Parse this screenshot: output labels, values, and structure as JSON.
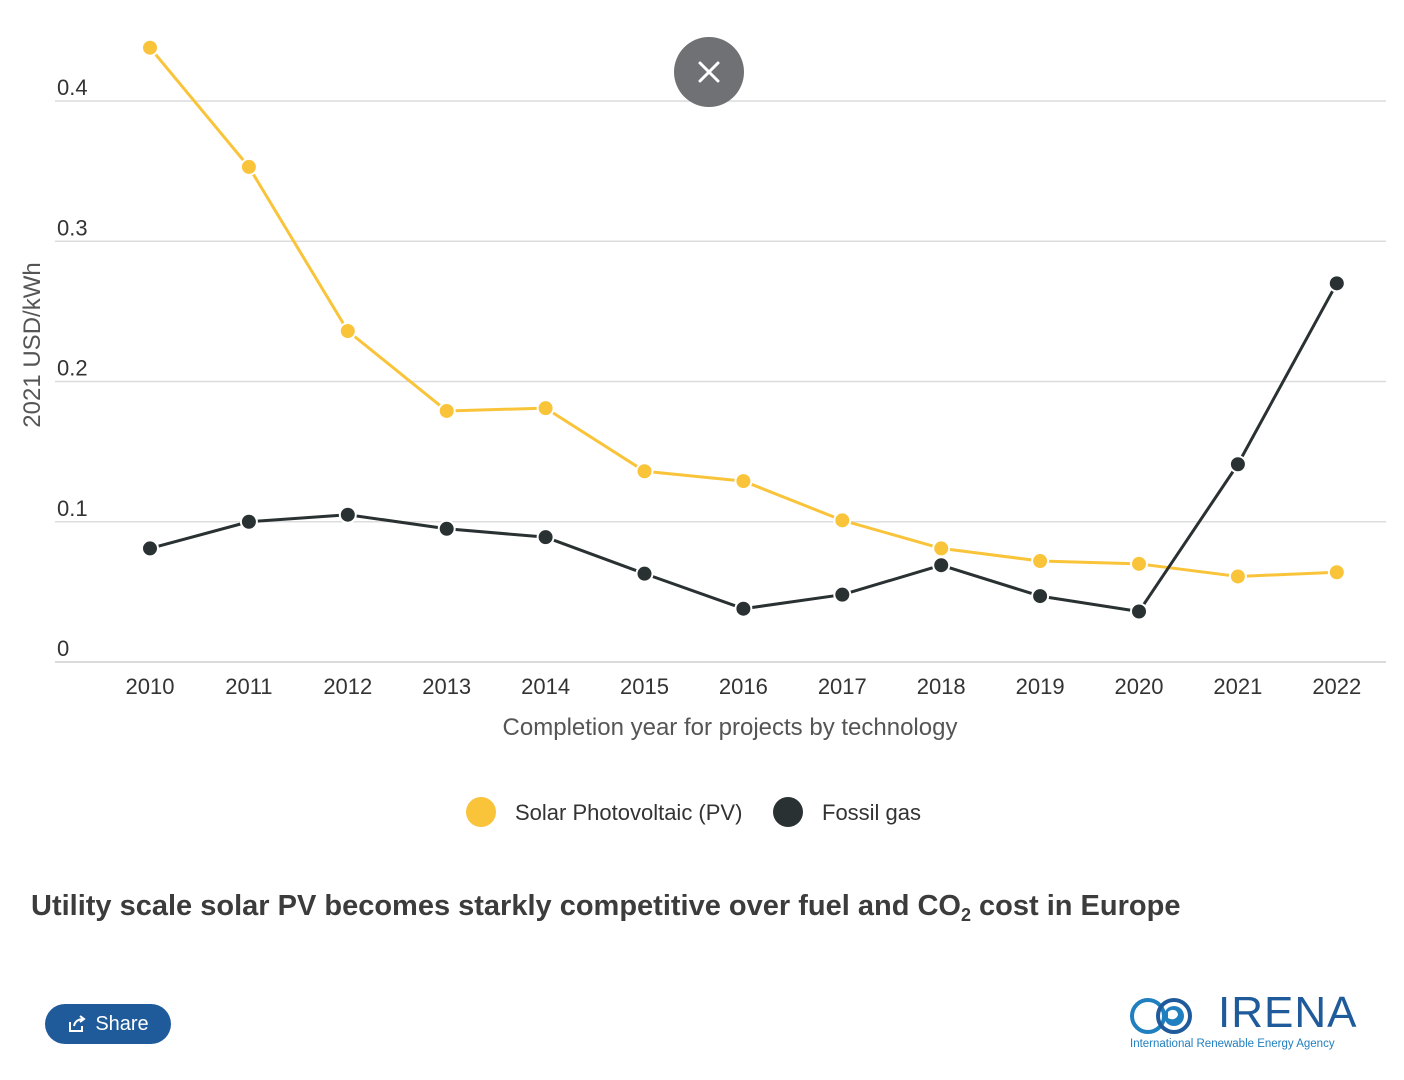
{
  "chart_data": {
    "type": "line",
    "categories": [
      "2010",
      "2011",
      "2012",
      "2013",
      "2014",
      "2015",
      "2016",
      "2017",
      "2018",
      "2019",
      "2020",
      "2021",
      "2022"
    ],
    "series": [
      {
        "name": "Solar Photovoltaic (PV)",
        "color": "#f9c43a",
        "values": [
          0.438,
          0.353,
          0.236,
          0.179,
          0.181,
          0.136,
          0.129,
          0.101,
          0.081,
          0.072,
          0.07,
          0.061,
          0.064
        ]
      },
      {
        "name": "Fossil gas",
        "color": "#2a3132",
        "values": [
          0.081,
          0.1,
          0.105,
          0.095,
          0.089,
          0.063,
          0.038,
          0.048,
          0.069,
          0.047,
          0.036,
          0.141,
          0.27
        ]
      }
    ],
    "yticks": [
      "0",
      "0.1",
      "0.2",
      "0.3",
      "0.4"
    ],
    "ylim": [
      0,
      0.4
    ],
    "xlabel": "Completion year for projects by technology",
    "ylabel": "2021 USD/kWh",
    "grid": true,
    "legend_position": "bottom-center"
  },
  "caption": {
    "prefix": "Utility scale solar PV becomes starkly competitive over fuel and CO",
    "subscript": "2",
    "suffix": " cost in Europe"
  },
  "share": {
    "label": "Share",
    "icon": "share-icon"
  },
  "close": {
    "icon": "close-icon"
  },
  "logo": {
    "word": "IRENA",
    "subtitle": "International Renewable Energy Agency",
    "icon": "globe-icon"
  },
  "colors": {
    "accent": "#1f5b9a",
    "solar": "#f9c43a",
    "gas": "#2a3132"
  }
}
